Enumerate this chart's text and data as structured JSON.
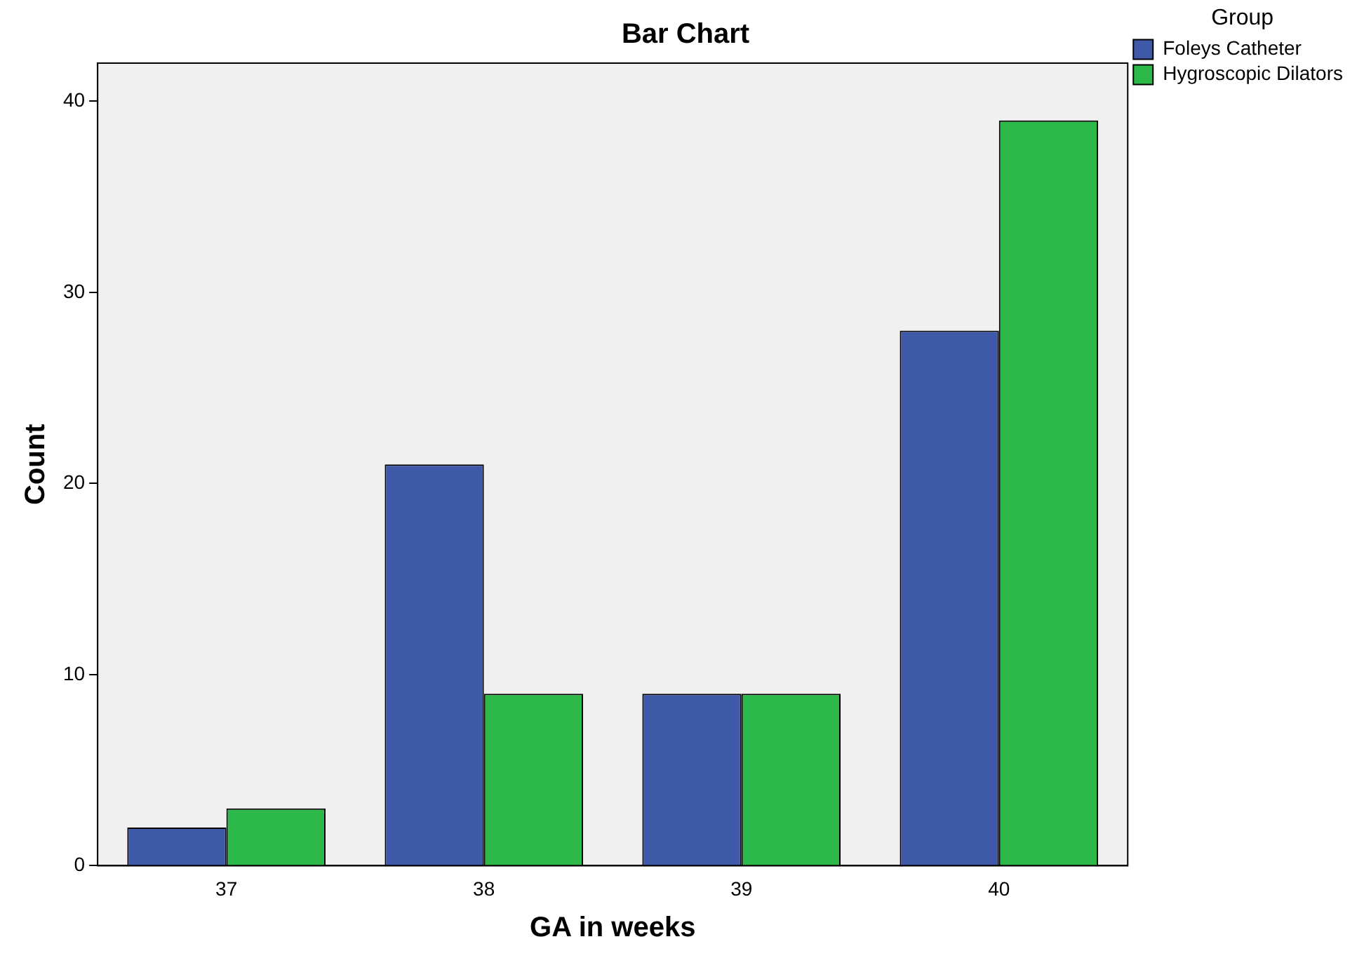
{
  "chart_data": {
    "type": "bar",
    "title": "Bar Chart",
    "xlabel": "GA in weeks",
    "ylabel": "Count",
    "legend_title": "Group",
    "categories": [
      "37",
      "38",
      "39",
      "40"
    ],
    "series": [
      {
        "name": "Foleys Catheter",
        "color": "#3f59a9",
        "values": [
          2,
          21,
          9,
          28
        ]
      },
      {
        "name": "Hygroscopic Dilators",
        "color": "#2db84a",
        "values": [
          3,
          9,
          9,
          39
        ]
      }
    ],
    "ylim": [
      0,
      42
    ],
    "yticks": [
      0,
      10,
      20,
      30,
      40
    ],
    "grid": false,
    "legend": "top right"
  }
}
